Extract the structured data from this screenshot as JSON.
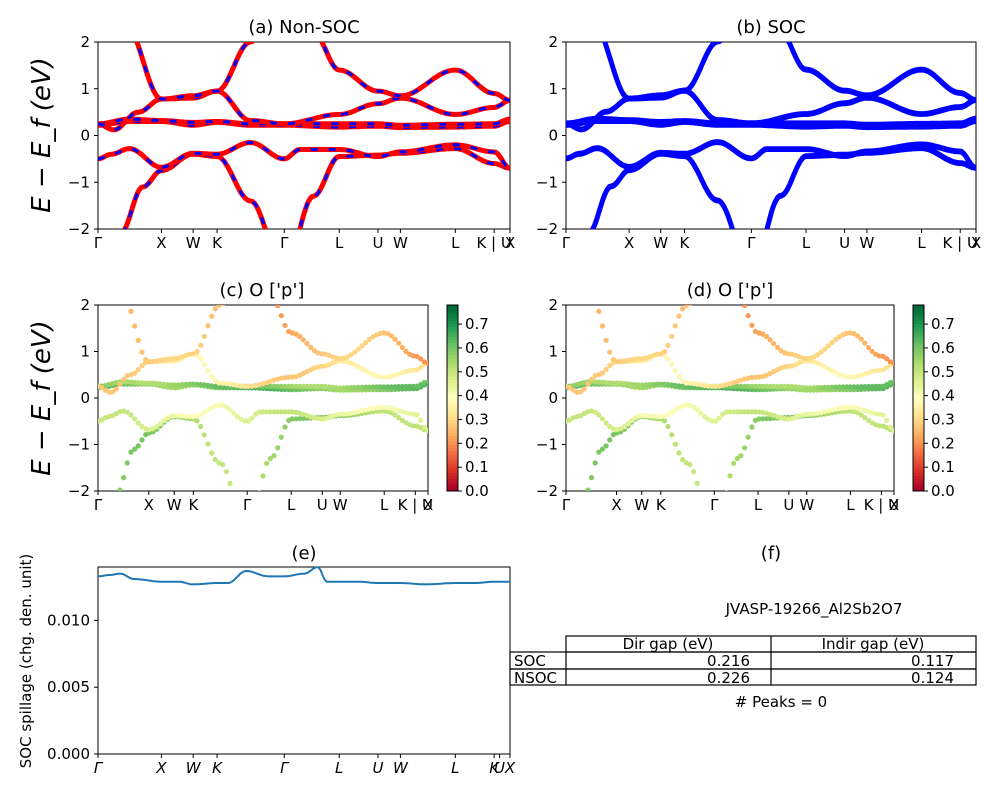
{
  "kpath_labels": [
    "Γ",
    "X",
    "W",
    "K",
    "Γ",
    "L",
    "U",
    "W",
    "L",
    "K | U",
    "X"
  ],
  "panels": {
    "a": {
      "title": "(a) Non-SOC",
      "ylabel": "E − E_f (eV)"
    },
    "b": {
      "title": "(b) SOC"
    },
    "c": {
      "title": "(c)  O ['p']",
      "ylabel": "E − E_f (eV)"
    },
    "d": {
      "title": "(d) O ['p']"
    },
    "e": {
      "title": "(e)",
      "ylabel": "SOC spillage (chg. den. unit)"
    },
    "f": {
      "title": "(f)"
    }
  },
  "colorbar": {
    "ticks": [
      "0.0",
      "0.1",
      "0.2",
      "0.3",
      "0.4",
      "0.5",
      "0.6",
      "0.7"
    ],
    "min": 0.0,
    "max": 0.78,
    "colormap": "RdYlGn"
  },
  "colors": {
    "nsoc_line": "#ff0000",
    "nsoc_dash": "#0000ff",
    "soc_line": "#0000ff",
    "spillage_line": "#1f77b4"
  },
  "table": {
    "material": "JVASP-19266_Al2Sb2O7",
    "headers": [
      "",
      "Dir gap (eV)",
      "Indir gap (eV)"
    ],
    "rows": [
      {
        "label": "SOC",
        "dir": "0.216",
        "indir": "0.117"
      },
      {
        "label": "NSOC",
        "dir": "0.226",
        "indir": "0.124"
      }
    ],
    "peaks": "# Peaks = 0"
  },
  "chart_data": [
    {
      "type": "line",
      "panel": "a",
      "title": "(a) Non-SOC",
      "ylabel": "E − E_f (eV)",
      "ylim": [
        -2,
        2
      ],
      "yticks": [
        "−2",
        "−1",
        "0",
        "1",
        "2"
      ],
      "xticks": [
        "Γ",
        "X",
        "W",
        "K",
        "Γ",
        "L",
        "U",
        "W",
        "L",
        "K | U",
        "X"
      ],
      "kpath_positions": [
        0,
        1.414,
        2.121,
        2.654,
        4.152,
        5.377,
        6.241,
        6.741,
        7.965,
        8.831,
        9.184
      ],
      "series": [
        {
          "band": 1,
          "k": [
            0,
            0.5,
            1,
            1.414,
            2.121,
            2.654,
            3.4,
            4.152,
            4.8,
            5.377,
            6.241,
            6.741,
            7.965,
            8.831,
            9.184
          ],
          "E": [
            -3.5,
            -2.1,
            -1.1,
            -0.75,
            -0.4,
            -0.45,
            -1.4,
            -2.9,
            -1.3,
            -0.45,
            -0.42,
            -0.38,
            -0.28,
            -0.6,
            -0.7
          ]
        },
        {
          "band": 2,
          "k": [
            0,
            0.3,
            0.7,
            1.414,
            2.121,
            2.654,
            3.4,
            4.152,
            4.5,
            5.377,
            6.241,
            6.741,
            7.965,
            8.831,
            9.184
          ],
          "E": [
            -0.5,
            -0.4,
            -0.28,
            -0.68,
            -0.38,
            -0.4,
            -0.15,
            -0.5,
            -0.3,
            -0.3,
            -0.45,
            -0.35,
            -0.2,
            -0.35,
            -0.7
          ]
        },
        {
          "band": 3,
          "k": [
            0,
            0.7,
            1.414,
            2.121,
            2.654,
            3.4,
            4.152,
            5.377,
            6.241,
            6.741,
            7.965,
            8.831,
            9.184
          ],
          "E": [
            0.22,
            0.3,
            0.3,
            0.22,
            0.28,
            0.22,
            0.22,
            0.18,
            0.2,
            0.17,
            0.18,
            0.2,
            0.3
          ]
        },
        {
          "band": 4,
          "k": [
            0,
            0.7,
            1.414,
            2.121,
            2.654,
            3.4,
            4.152,
            5.377,
            6.241,
            6.741,
            7.965,
            8.831,
            9.184
          ],
          "E": [
            0.25,
            0.35,
            0.32,
            0.28,
            0.3,
            0.25,
            0.25,
            0.25,
            0.25,
            0.22,
            0.24,
            0.25,
            0.35
          ]
        },
        {
          "band": 5,
          "k": [
            0,
            0.35,
            0.9,
            1.414,
            2.121,
            2.654,
            3.4,
            4.152,
            5.377,
            6.241,
            6.741,
            7.965,
            8.831,
            9.184
          ],
          "E": [
            0.25,
            0.12,
            0.5,
            0.78,
            0.8,
            0.95,
            0.32,
            0.25,
            0.45,
            0.68,
            0.8,
            0.45,
            0.6,
            0.75
          ]
        },
        {
          "band": 6,
          "k": [
            0,
            0.6,
            1.414,
            2.121,
            2.654,
            3.4,
            4.152,
            4.8,
            5.377,
            6.241,
            6.741,
            7.965,
            8.831,
            9.184
          ],
          "E": [
            3.5,
            2.4,
            0.78,
            0.85,
            0.95,
            2.0,
            3.5,
            2.2,
            1.4,
            0.95,
            0.85,
            1.4,
            0.9,
            0.75
          ]
        }
      ]
    },
    {
      "type": "line",
      "panel": "b",
      "title": "(b) SOC",
      "ylim": [
        -2,
        2
      ],
      "yticks": [
        "−2",
        "−1",
        "0",
        "1",
        "2"
      ],
      "xticks": [
        "Γ",
        "X",
        "W",
        "K",
        "Γ",
        "L",
        "U",
        "W",
        "L",
        "K | U",
        "X"
      ],
      "series": [
        {
          "band": 1,
          "k": [
            0,
            0.5,
            1,
            1.414,
            2.121,
            2.654,
            3.4,
            4.152,
            4.8,
            5.377,
            6.241,
            6.741,
            7.965,
            8.831,
            9.184
          ],
          "E": [
            -3.5,
            -2.1,
            -1.1,
            -0.75,
            -0.4,
            -0.45,
            -1.4,
            -2.9,
            -1.3,
            -0.45,
            -0.42,
            -0.38,
            -0.28,
            -0.6,
            -0.7
          ]
        },
        {
          "band": 2,
          "k": [
            0,
            0.3,
            0.7,
            1.414,
            2.121,
            2.654,
            3.4,
            4.152,
            4.5,
            5.377,
            6.241,
            6.741,
            7.965,
            8.831,
            9.184
          ],
          "E": [
            -0.5,
            -0.4,
            -0.28,
            -0.68,
            -0.38,
            -0.4,
            -0.15,
            -0.5,
            -0.3,
            -0.3,
            -0.45,
            -0.35,
            -0.2,
            -0.35,
            -0.7
          ]
        },
        {
          "band": 3,
          "k": [
            0,
            0.7,
            1.414,
            2.121,
            2.654,
            3.4,
            4.152,
            5.377,
            6.241,
            6.741,
            7.965,
            8.831,
            9.184
          ],
          "E": [
            0.22,
            0.3,
            0.3,
            0.22,
            0.28,
            0.22,
            0.22,
            0.18,
            0.2,
            0.17,
            0.18,
            0.2,
            0.3
          ]
        },
        {
          "band": 4,
          "k": [
            0,
            0.7,
            1.414,
            2.121,
            2.654,
            3.4,
            4.152,
            5.377,
            6.241,
            6.741,
            7.965,
            8.831,
            9.184
          ],
          "E": [
            0.25,
            0.35,
            0.32,
            0.28,
            0.3,
            0.25,
            0.25,
            0.25,
            0.25,
            0.22,
            0.24,
            0.25,
            0.35
          ]
        },
        {
          "band": 5,
          "k": [
            0,
            0.35,
            0.9,
            1.414,
            2.121,
            2.654,
            3.4,
            4.152,
            5.377,
            6.241,
            6.741,
            7.965,
            8.831,
            9.184
          ],
          "E": [
            0.25,
            0.12,
            0.5,
            0.78,
            0.8,
            0.95,
            0.32,
            0.25,
            0.45,
            0.68,
            0.8,
            0.45,
            0.6,
            0.75
          ]
        },
        {
          "band": 6,
          "k": [
            0,
            0.6,
            1.414,
            2.121,
            2.654,
            3.4,
            4.152,
            4.8,
            5.377,
            6.241,
            6.741,
            7.965,
            8.831,
            9.184
          ],
          "E": [
            3.5,
            2.4,
            0.78,
            0.85,
            0.95,
            2.0,
            3.5,
            2.2,
            1.4,
            0.95,
            0.85,
            1.4,
            0.9,
            0.75
          ]
        }
      ]
    },
    {
      "type": "scatter",
      "panel": "c",
      "title": "(c)  O ['p']",
      "ylim": [
        -2,
        2
      ],
      "yticks": [
        "−2",
        "−1",
        "0",
        "1",
        "2"
      ],
      "xticks": [
        "Γ",
        "X",
        "W",
        "K",
        "Γ",
        "L",
        "U",
        "W",
        "L",
        "K | U",
        "X"
      ],
      "color_scale": [
        0.0,
        0.78
      ],
      "band_weights": [
        0.55,
        0.45,
        0.6,
        0.58,
        0.32,
        0.25
      ]
    },
    {
      "type": "scatter",
      "panel": "d",
      "title": "(d) O ['p']",
      "ylim": [
        -2,
        2
      ],
      "yticks": [
        "−2",
        "−1",
        "0",
        "1",
        "2"
      ],
      "xticks": [
        "Γ",
        "X",
        "W",
        "K",
        "Γ",
        "L",
        "U",
        "W",
        "L",
        "K | U",
        "X"
      ],
      "color_scale": [
        0.0,
        0.78
      ],
      "band_weights": [
        0.55,
        0.45,
        0.6,
        0.58,
        0.32,
        0.25
      ]
    },
    {
      "type": "line",
      "panel": "e",
      "title": "(e)",
      "ylabel": "SOC spillage (chg. den. unit)",
      "ylim": [
        0,
        0.014
      ],
      "yticks": [
        "0.000",
        "0.005",
        "0.010"
      ],
      "xticks": [
        "Γ",
        "X",
        "W",
        "K",
        "Γ",
        "L",
        "U",
        "W",
        "L",
        "K",
        "U",
        "X"
      ],
      "xtick_positions": [
        0,
        1.414,
        2.121,
        2.654,
        4.152,
        5.377,
        6.241,
        6.741,
        7.965,
        8.831,
        8.95,
        9.184
      ],
      "series": [
        {
          "name": "",
          "k": [
            0,
            0.25,
            0.5,
            0.8,
            1.414,
            1.8,
            2.121,
            2.654,
            2.9,
            3.3,
            3.8,
            4.152,
            4.6,
            4.9,
            5.1,
            5.377,
            5.8,
            6.241,
            6.741,
            7.3,
            7.965,
            8.4,
            8.831,
            9.184
          ],
          "values": [
            0.0133,
            0.0134,
            0.0135,
            0.0131,
            0.0129,
            0.0129,
            0.0127,
            0.0128,
            0.0128,
            0.0137,
            0.0133,
            0.0133,
            0.0135,
            0.014,
            0.0129,
            0.0129,
            0.0129,
            0.0128,
            0.0128,
            0.0127,
            0.0128,
            0.0128,
            0.0129,
            0.0129
          ]
        }
      ]
    }
  ]
}
